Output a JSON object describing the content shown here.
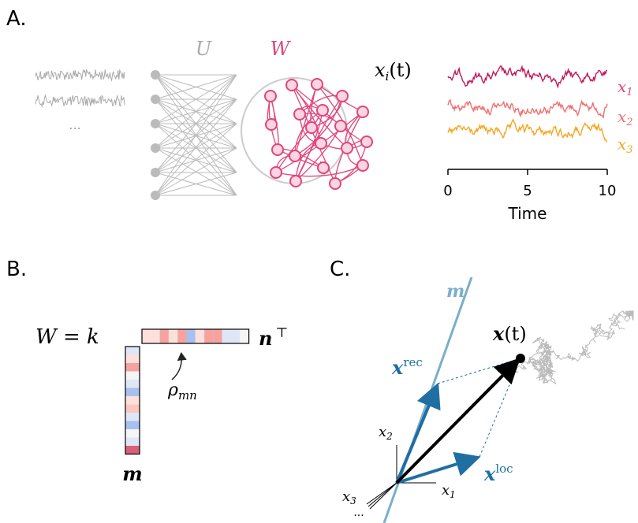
{
  "panel_a": {
    "label": "A.",
    "u_label": "U",
    "w_label": "W",
    "ellipsis": "...",
    "state_label": {
      "base": "x",
      "sub": "i",
      "rest": "(t)"
    },
    "traces": [
      {
        "base": "x",
        "sub": "1"
      },
      {
        "base": "x",
        "sub": "2"
      },
      {
        "base": "x",
        "sub": "3"
      }
    ],
    "xticks": [
      "0",
      "5",
      "10"
    ],
    "xlabel": "Time"
  },
  "panel_b": {
    "label": "B.",
    "equation": "W = k",
    "row_vector": "n",
    "transpose": "⊤",
    "column_vector": "m",
    "corr": {
      "base": "ρ",
      "sub": "mn"
    }
  },
  "panel_c": {
    "label": "C.",
    "m_axis": "m",
    "state": {
      "base": "x",
      "rest": "(t)"
    },
    "rec": {
      "base": "x",
      "sup": "rec"
    },
    "loc": {
      "base": "x",
      "sup": "loc"
    },
    "axes": [
      {
        "base": "x",
        "sub": "1"
      },
      {
        "base": "x",
        "sub": "2"
      },
      {
        "base": "x",
        "sub": "3"
      }
    ],
    "ellipsis": "..."
  }
}
